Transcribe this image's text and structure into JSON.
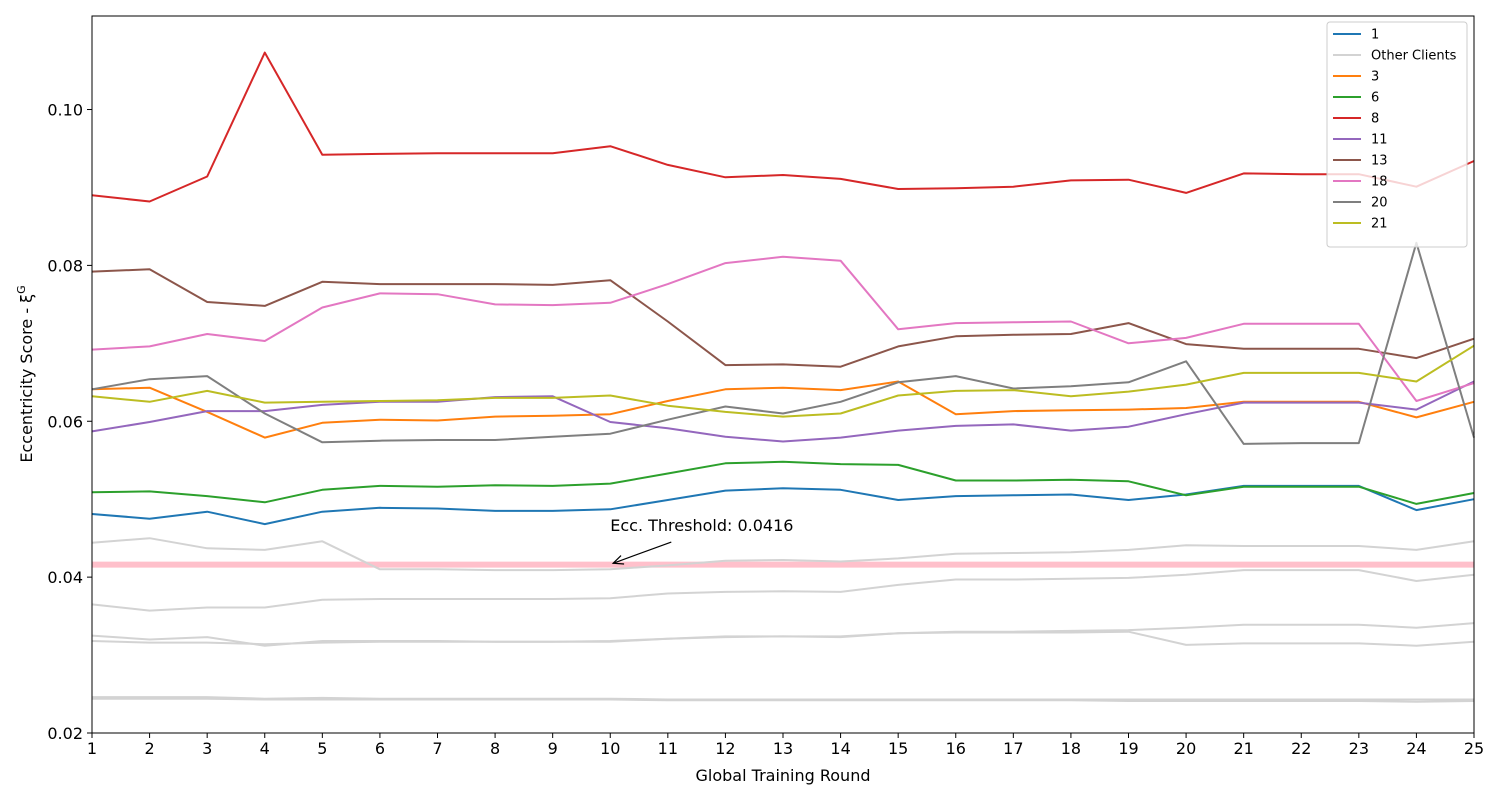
{
  "chart_data": {
    "type": "line",
    "xlabel": "Global Training Round",
    "ylabel": "Eccentricity Score - ξ",
    "ylabel_sup": "G",
    "xlim": [
      1,
      25
    ],
    "ylim": [
      0.02,
      0.112
    ],
    "x": [
      1,
      2,
      3,
      4,
      5,
      6,
      7,
      8,
      9,
      10,
      11,
      12,
      13,
      14,
      15,
      16,
      17,
      18,
      19,
      20,
      21,
      22,
      23,
      24,
      25
    ],
    "yticks": [
      "0.02",
      "0.04",
      "0.06",
      "0.08",
      "0.10"
    ],
    "legend_position": "top-right",
    "threshold": {
      "value": 0.0416,
      "label": "Ecc. Threshold: 0.0416",
      "color": "#ffc0cb",
      "label_x": 10,
      "label_y": 0.0459
    },
    "series": [
      {
        "name": "1",
        "color": "#1f77b4",
        "values": [
          0.0481,
          0.0475,
          0.0484,
          0.0468,
          0.0484,
          0.0489,
          0.0488,
          0.0485,
          0.0485,
          0.0487,
          0.0499,
          0.0511,
          0.0514,
          0.0512,
          0.0499,
          0.0504,
          0.0505,
          0.0506,
          0.0499,
          0.0506,
          0.0517,
          0.0517,
          0.0517,
          0.0486,
          0.05
        ]
      },
      {
        "name": "Other Clients",
        "color": "#d3d3d3",
        "values": [
          0.0444,
          0.045,
          0.0437,
          0.0435,
          0.0446,
          0.041,
          0.041,
          0.0409,
          0.0409,
          0.041,
          0.0415,
          0.0421,
          0.0422,
          0.042,
          0.0424,
          0.043,
          0.0431,
          0.0432,
          0.0435,
          0.0441,
          0.044,
          0.044,
          0.044,
          0.0435,
          0.0446
        ]
      },
      {
        "name": "",
        "color": "#d3d3d3",
        "values": [
          0.0365,
          0.0357,
          0.0361,
          0.0361,
          0.0371,
          0.0372,
          0.0372,
          0.0372,
          0.0372,
          0.0373,
          0.0379,
          0.0381,
          0.0382,
          0.0381,
          0.039,
          0.0397,
          0.0397,
          0.0398,
          0.0399,
          0.0403,
          0.0409,
          0.0409,
          0.0409,
          0.0395,
          0.0403
        ]
      },
      {
        "name": "",
        "color": "#d3d3d3",
        "values": [
          0.0325,
          0.032,
          0.0323,
          0.0312,
          0.0318,
          0.0318,
          0.0318,
          0.0317,
          0.0317,
          0.0318,
          0.0321,
          0.0324,
          0.0324,
          0.0324,
          0.0328,
          0.033,
          0.033,
          0.0331,
          0.0332,
          0.0335,
          0.0339,
          0.0339,
          0.0339,
          0.0335,
          0.0341
        ]
      },
      {
        "name": "",
        "color": "#d3d3d3",
        "values": [
          0.0318,
          0.0316,
          0.0316,
          0.0314,
          0.0316,
          0.0317,
          0.0317,
          0.0317,
          0.0317,
          0.0317,
          0.0321,
          0.0323,
          0.0324,
          0.0323,
          0.0328,
          0.0329,
          0.0329,
          0.0329,
          0.033,
          0.0313,
          0.0315,
          0.0315,
          0.0315,
          0.0312,
          0.0317
        ]
      },
      {
        "name": "",
        "color": "#d3d3d3",
        "values": [
          0.0246,
          0.0246,
          0.0246,
          0.0244,
          0.0245,
          0.0244,
          0.0244,
          0.0244,
          0.0244,
          0.0244,
          0.0243,
          0.0243,
          0.0243,
          0.0243,
          0.0243,
          0.0243,
          0.0243,
          0.0243,
          0.0243,
          0.0243,
          0.0243,
          0.0243,
          0.0243,
          0.0243,
          0.0243
        ]
      },
      {
        "name": "",
        "color": "#d3d3d3",
        "values": [
          0.0244,
          0.0244,
          0.0244,
          0.0243,
          0.0243,
          0.0243,
          0.0243,
          0.0243,
          0.0243,
          0.0243,
          0.0242,
          0.0242,
          0.0242,
          0.0242,
          0.0242,
          0.0242,
          0.0242,
          0.0242,
          0.0241,
          0.0241,
          0.0241,
          0.0241,
          0.0241,
          0.024,
          0.0241
        ]
      },
      {
        "name": "3",
        "color": "#ff7f0e",
        "values": [
          0.0641,
          0.0643,
          0.0612,
          0.0579,
          0.0598,
          0.0602,
          0.0601,
          0.0606,
          0.0607,
          0.0609,
          0.0626,
          0.0641,
          0.0643,
          0.064,
          0.0651,
          0.0609,
          0.0613,
          0.0614,
          0.0615,
          0.0617,
          0.0625,
          0.0625,
          0.0625,
          0.0605,
          0.0625
        ]
      },
      {
        "name": "6",
        "color": "#2ca02c",
        "values": [
          0.0509,
          0.051,
          0.0504,
          0.0496,
          0.0512,
          0.0517,
          0.0516,
          0.0518,
          0.0517,
          0.052,
          0.0533,
          0.0546,
          0.0548,
          0.0545,
          0.0544,
          0.0524,
          0.0524,
          0.0525,
          0.0523,
          0.0505,
          0.0516,
          0.0516,
          0.0516,
          0.0494,
          0.0508
        ]
      },
      {
        "name": "8",
        "color": "#d62728",
        "values": [
          0.089,
          0.0882,
          0.0914,
          0.1073,
          0.0942,
          0.0943,
          0.0944,
          0.0944,
          0.0944,
          0.0953,
          0.0929,
          0.0913,
          0.0916,
          0.0911,
          0.0898,
          0.0899,
          0.0901,
          0.0909,
          0.091,
          0.0893,
          0.0918,
          0.0917,
          0.0917,
          0.0901,
          0.0934
        ]
      },
      {
        "name": "11",
        "color": "#9467bd",
        "values": [
          0.0587,
          0.0599,
          0.0613,
          0.0613,
          0.0621,
          0.0625,
          0.0625,
          0.0631,
          0.0632,
          0.0599,
          0.0591,
          0.058,
          0.0574,
          0.0579,
          0.0588,
          0.0594,
          0.0596,
          0.0588,
          0.0593,
          0.0609,
          0.0624,
          0.0624,
          0.0624,
          0.0615,
          0.0651
        ]
      },
      {
        "name": "13",
        "color": "#8c564b",
        "values": [
          0.0792,
          0.0795,
          0.0753,
          0.0748,
          0.0779,
          0.0776,
          0.0776,
          0.0776,
          0.0775,
          0.0781,
          0.0728,
          0.0672,
          0.0673,
          0.067,
          0.0696,
          0.0709,
          0.0711,
          0.0712,
          0.0726,
          0.0699,
          0.0693,
          0.0693,
          0.0693,
          0.0681,
          0.0706
        ]
      },
      {
        "name": "18",
        "color": "#e377c2",
        "values": [
          0.0692,
          0.0696,
          0.0712,
          0.0703,
          0.0746,
          0.0764,
          0.0763,
          0.075,
          0.0749,
          0.0752,
          0.0776,
          0.0803,
          0.0811,
          0.0806,
          0.0718,
          0.0726,
          0.0727,
          0.0728,
          0.07,
          0.0707,
          0.0725,
          0.0725,
          0.0725,
          0.0626,
          0.0649
        ]
      },
      {
        "name": "20",
        "color": "#7f7f7f",
        "values": [
          0.0641,
          0.0654,
          0.0658,
          0.061,
          0.0573,
          0.0575,
          0.0576,
          0.0576,
          0.058,
          0.0584,
          0.0602,
          0.0619,
          0.061,
          0.0625,
          0.065,
          0.0658,
          0.0642,
          0.0645,
          0.065,
          0.0677,
          0.0571,
          0.0572,
          0.0572,
          0.0829,
          0.0579
        ]
      },
      {
        "name": "21",
        "color": "#bcbd22",
        "values": [
          0.0632,
          0.0625,
          0.0639,
          0.0624,
          0.0625,
          0.0626,
          0.0627,
          0.063,
          0.063,
          0.0633,
          0.062,
          0.0612,
          0.0606,
          0.061,
          0.0633,
          0.0639,
          0.064,
          0.0632,
          0.0638,
          0.0647,
          0.0662,
          0.0662,
          0.0662,
          0.0651,
          0.0697
        ]
      }
    ]
  }
}
